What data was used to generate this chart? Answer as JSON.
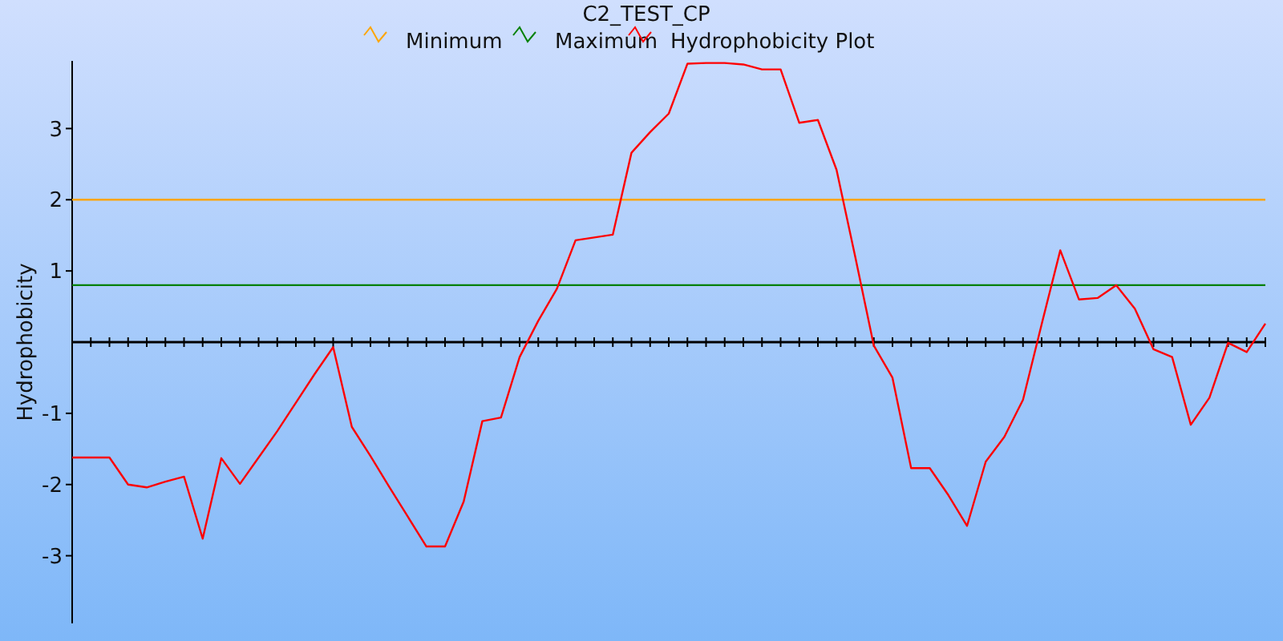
{
  "chart_data": {
    "type": "line",
    "title": "C2_TEST_CP",
    "ylabel": "Hydrophobicity",
    "categories": [
      null,
      null,
      null,
      null,
      null,
      null,
      null,
      null,
      null,
      null,
      null,
      null,
      null,
      null,
      null,
      null,
      null,
      null,
      null,
      null,
      null,
      null,
      null,
      null,
      null,
      null,
      null,
      null,
      null,
      null,
      null,
      null,
      null,
      null,
      null,
      null,
      null,
      null,
      null,
      null,
      null,
      null,
      null,
      null,
      null,
      null,
      null,
      null,
      null,
      null,
      null,
      null,
      null,
      null,
      null,
      null,
      null,
      null,
      null,
      null,
      null,
      null,
      null,
      null,
      null
    ],
    "series": [
      {
        "name": "Minimum",
        "color": "#ffa500",
        "values": [
          2,
          2,
          2,
          2,
          2,
          2,
          2,
          2,
          2,
          2,
          2,
          2,
          2,
          2,
          2,
          2,
          2,
          2,
          2,
          2,
          2,
          2,
          2,
          2,
          2,
          2,
          2,
          2,
          2,
          2,
          2,
          2,
          2,
          2,
          2,
          2,
          2,
          2,
          2,
          2,
          2,
          2,
          2,
          2,
          2,
          2,
          2,
          2,
          2,
          2,
          2,
          2,
          2,
          2,
          2,
          2,
          2,
          2,
          2,
          2,
          2,
          2,
          2,
          2,
          2
        ]
      },
      {
        "name": "Maximum",
        "color": "#008000",
        "values": [
          0.8,
          0.8,
          0.8,
          0.8,
          0.8,
          0.8,
          0.8,
          0.8,
          0.8,
          0.8,
          0.8,
          0.8,
          0.8,
          0.8,
          0.8,
          0.8,
          0.8,
          0.8,
          0.8,
          0.8,
          0.8,
          0.8,
          0.8,
          0.8,
          0.8,
          0.8,
          0.8,
          0.8,
          0.8,
          0.8,
          0.8,
          0.8,
          0.8,
          0.8,
          0.8,
          0.8,
          0.8,
          0.8,
          0.8,
          0.8,
          0.8,
          0.8,
          0.8,
          0.8,
          0.8,
          0.8,
          0.8,
          0.8,
          0.8,
          0.8,
          0.8,
          0.8,
          0.8,
          0.8,
          0.8,
          0.8,
          0.8,
          0.8,
          0.8,
          0.8,
          0.8,
          0.8,
          0.8,
          0.8,
          0.8
        ]
      },
      {
        "name": "Hydrophobicity Plot",
        "color": "#ff0000",
        "values": [
          -1.62,
          -1.62,
          -1.62,
          -2.0,
          -2.04,
          -1.96,
          -1.89,
          -2.76,
          -1.63,
          -1.99,
          -1.62,
          -1.25,
          -0.85,
          -0.45,
          -0.07,
          -1.19,
          -1.6,
          -2.03,
          -2.45,
          -2.87,
          -2.87,
          -2.24,
          -1.11,
          -1.06,
          -0.21,
          0.3,
          0.75,
          1.43,
          1.47,
          1.51,
          2.66,
          2.95,
          3.21,
          3.91,
          3.92,
          3.92,
          3.9,
          3.83,
          3.83,
          3.08,
          3.12,
          2.42,
          1.2,
          -0.05,
          -0.5,
          -1.77,
          -1.77,
          -2.15,
          -2.58,
          -1.68,
          -1.33,
          -0.81,
          0.25,
          1.29,
          0.6,
          0.62,
          0.8,
          0.47,
          -0.1,
          -0.21,
          -1.16,
          -0.78,
          -0.01,
          -0.14,
          0.26
        ]
      }
    ],
    "ylim": [
      -3.95,
      3.95
    ],
    "yticks": [
      -3,
      -2,
      -1,
      1,
      2,
      3
    ],
    "legend": "top",
    "grid": false,
    "marker": "none",
    "line_style": "solid"
  }
}
